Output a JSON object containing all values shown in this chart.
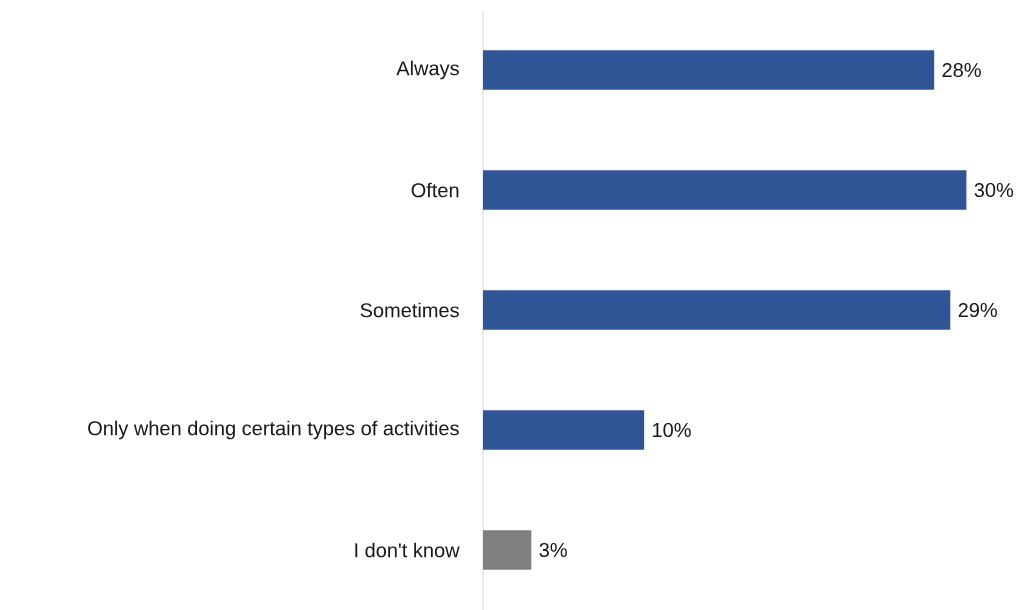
{
  "chart_data": {
    "type": "bar",
    "orientation": "horizontal",
    "relative": false,
    "categories": [
      "Always",
      "Often",
      "Sometimes",
      "Only when doing certain types of  activities",
      "I don't know"
    ],
    "values": [
      28,
      30,
      29,
      10,
      3
    ],
    "colors": [
      "#2f5597",
      "#2f5597",
      "#2f5597",
      "#2f5597",
      "#7f7f7f"
    ],
    "value_labels": [
      "28%",
      "30%",
      "29%",
      "10%",
      "3%"
    ]
  }
}
